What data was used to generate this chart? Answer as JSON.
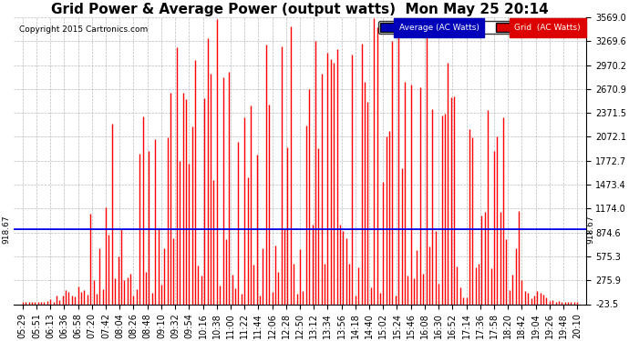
{
  "title": "Grid Power & Average Power (output watts)  Mon May 25 20:14",
  "copyright": "Copyright 2015 Cartronics.com",
  "yticks": [
    3569.0,
    3269.6,
    2970.2,
    2670.9,
    2371.5,
    2072.1,
    1772.7,
    1473.4,
    1174.0,
    874.6,
    575.3,
    275.9,
    -23.5
  ],
  "ymin": -23.5,
  "ymax": 3569.0,
  "hline_value": 918.67,
  "hline_label": "918.67",
  "avg_line_value": 918.67,
  "legend_avg_color": "#0000bb",
  "legend_grid_color": "#dd0000",
  "legend_avg_label": "Average (AC Watts)",
  "legend_grid_label": "Grid  (AC Watts)",
  "bar_color": "#ff0000",
  "avg_line_color": "#0000ff",
  "bg_color": "#ffffff",
  "grid_color": "#bbbbbb",
  "title_fontsize": 11,
  "tick_fontsize": 7,
  "num_points": 181,
  "xtick_labels": [
    "05:29",
    "05:51",
    "06:13",
    "06:36",
    "06:58",
    "07:20",
    "07:42",
    "08:04",
    "08:26",
    "08:48",
    "09:10",
    "09:32",
    "09:54",
    "10:16",
    "10:38",
    "11:00",
    "11:22",
    "11:44",
    "12:06",
    "12:28",
    "12:50",
    "13:12",
    "13:34",
    "13:56",
    "14:18",
    "14:40",
    "15:02",
    "15:24",
    "15:46",
    "16:08",
    "16:30",
    "16:52",
    "17:14",
    "17:36",
    "17:58",
    "18:20",
    "18:42",
    "19:04",
    "19:26",
    "19:48",
    "20:10"
  ]
}
